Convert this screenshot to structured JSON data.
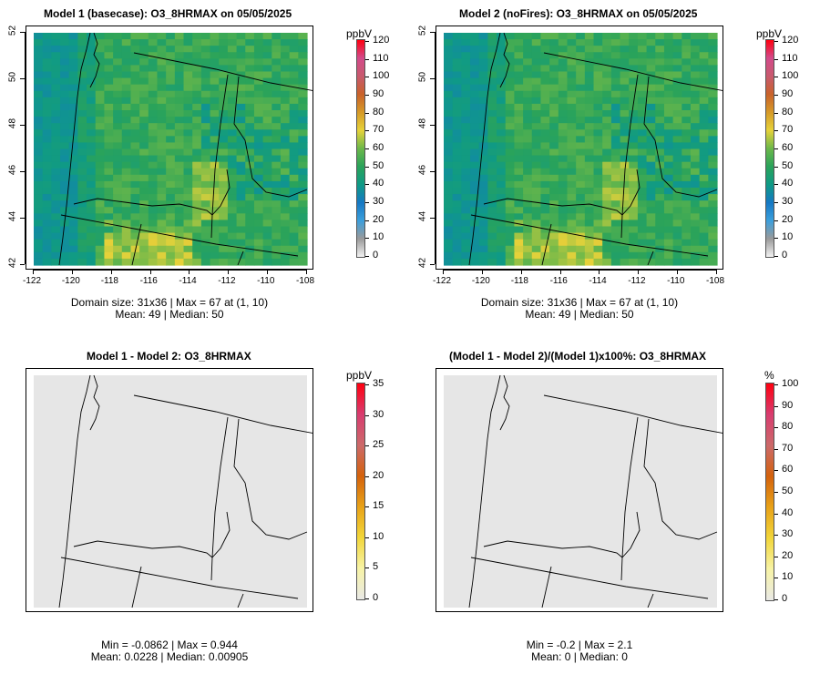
{
  "panels": [
    {
      "title": "Model 1 (basecase): O3_8HRMAX on 05/05/2025",
      "stat_line1": "Domain size: 31x36 | Max = 67 at (1, 10)",
      "stat_line2": "Mean: 49 |  Median: 50",
      "unit": "ppbV",
      "colorbar_ticks": [
        "0",
        "10",
        "20",
        "30",
        "40",
        "50",
        "60",
        "70",
        "80",
        "90",
        "100",
        "110",
        "120"
      ],
      "x_ticks": [
        "-122",
        "-120",
        "-118",
        "-116",
        "-114",
        "-112",
        "-110",
        "-108"
      ],
      "y_ticks": [
        "42",
        "44",
        "46",
        "48",
        "50",
        "52"
      ],
      "field": "ozone"
    },
    {
      "title": "Model 2 (noFires): O3_8HRMAX on 05/05/2025",
      "stat_line1": "Domain size: 31x36 | Max = 67 at (1, 10)",
      "stat_line2": "Mean: 49 |  Median: 50",
      "unit": "ppbV",
      "colorbar_ticks": [
        "0",
        "10",
        "20",
        "30",
        "40",
        "50",
        "60",
        "70",
        "80",
        "90",
        "100",
        "110",
        "120"
      ],
      "x_ticks": [
        "-122",
        "-120",
        "-118",
        "-116",
        "-114",
        "-112",
        "-110",
        "-108"
      ],
      "y_ticks": [
        "42",
        "44",
        "46",
        "48",
        "50",
        "52"
      ],
      "field": "ozone"
    },
    {
      "title": "Model 1 - Model 2: O3_8HRMAX",
      "stat_line1": "Min = -0.0862 | Max = 0.944",
      "stat_line2": "Mean: 0.0228 |  Median: 0.00905",
      "unit": "ppbV",
      "colorbar_ticks": [
        "0",
        "5",
        "10",
        "15",
        "20",
        "25",
        "30",
        "35"
      ],
      "x_ticks": [],
      "y_ticks": [],
      "field": "diff"
    },
    {
      "title": "(Model 1 - Model 2)/(Model 1)x100%: O3_8HRMAX",
      "stat_line1": "Min = -0.2 | Max = 2.1",
      "stat_line2": "Mean: 0 |  Median: 0",
      "unit": "%",
      "colorbar_ticks": [
        "0",
        "10",
        "20",
        "30",
        "40",
        "50",
        "60",
        "70",
        "80",
        "90",
        "100"
      ],
      "x_ticks": [],
      "y_ticks": [],
      "field": "diff"
    }
  ],
  "colors": {
    "ozone_scale": [
      "#f2f2f2",
      "#9a9a9a",
      "#3c9fdc",
      "#1578c4",
      "#0f9a86",
      "#2aa35a",
      "#6cb84a",
      "#e6d23a",
      "#d69a28",
      "#c9622a",
      "#c85a6e",
      "#d34a8a",
      "#ff0010"
    ],
    "diff_scale": [
      "#e9e9e6",
      "#f7f3a6",
      "#f2d63a",
      "#e8a218",
      "#d4620c",
      "#cc6a6a",
      "#d83c70",
      "#ff0010"
    ],
    "diff_background": "#e6e6e6",
    "border": "#000000"
  }
}
